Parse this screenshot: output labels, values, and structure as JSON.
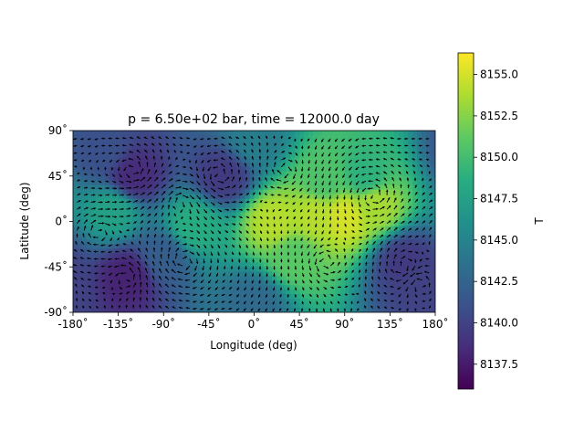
{
  "chart_data": {
    "type": "heatmap",
    "title": "p = 6.50e+02 bar, time = 12000.0 day",
    "xlabel": "Longitude (deg)",
    "ylabel": "Latitude (deg)",
    "xlim": [
      -180,
      180
    ],
    "ylim": [
      -90,
      90
    ],
    "x_ticks": [
      -180,
      -135,
      -90,
      -45,
      0,
      45,
      90,
      135,
      180
    ],
    "x_tick_labels": [
      "-180$^\\circ$",
      "-135$^\\circ$",
      "-90$^\\circ$",
      "-45$^\\circ$",
      "0$^\\circ$",
      "45$^\\circ$",
      "90$^\\circ$",
      "135$^\\circ$",
      "180$^\\circ$"
    ],
    "x_tick_text": [
      "-180˚",
      "-135˚",
      "-90˚",
      "-45˚",
      "0˚",
      "45˚",
      "90˚",
      "135˚",
      "180˚"
    ],
    "y_ticks": [
      90,
      45,
      0,
      -45,
      -90
    ],
    "y_tick_text": [
      "90˚",
      "45˚",
      "0˚",
      "-45˚",
      "-90˚"
    ],
    "colorbar": {
      "label": "T",
      "range": [
        8136.0,
        8156.3
      ],
      "ticks": [
        8137.5,
        8140.0,
        8142.5,
        8145.0,
        8147.5,
        8150.0,
        8152.5,
        8155.0
      ],
      "tick_text": [
        "8137.5",
        "8140.0",
        "8142.5",
        "8145.0",
        "8147.5",
        "8150.0",
        "8152.5",
        "8155.0"
      ],
      "colormap": "viridis"
    },
    "temperature_features": [
      {
        "lon": 90,
        "lat": 5,
        "T": 8155.0
      },
      {
        "lon": 60,
        "lat": 5,
        "T": 8154.0
      },
      {
        "lon": 20,
        "lat": 0,
        "T": 8154.0
      },
      {
        "lon": 120,
        "lat": 15,
        "T": 8153.5
      },
      {
        "lon": 70,
        "lat": 40,
        "T": 8150.5
      },
      {
        "lon": 110,
        "lat": 45,
        "T": 8149.0
      },
      {
        "lon": 40,
        "lat": -35,
        "T": 8151.0
      },
      {
        "lon": -60,
        "lat": -5,
        "T": 8148.5
      },
      {
        "lon": -140,
        "lat": 10,
        "T": 8147.5
      },
      {
        "lon": -120,
        "lat": 45,
        "T": 8138.5
      },
      {
        "lon": -30,
        "lat": 45,
        "T": 8139.5
      },
      {
        "lon": -150,
        "lat": 70,
        "T": 8141.0
      },
      {
        "lon": -125,
        "lat": -55,
        "T": 8138.0
      },
      {
        "lon": 150,
        "lat": -40,
        "T": 8139.5
      },
      {
        "lon": 165,
        "lat": -60,
        "T": 8140.0
      },
      {
        "lon": -90,
        "lat": -35,
        "T": 8142.0
      },
      {
        "lon": 0,
        "lat": -80,
        "T": 8143.0
      },
      {
        "lon": 0,
        "lat": 80,
        "T": 8144.5
      }
    ],
    "quiver": "wind velocity vectors (black arrows) overlaid on a regular lon/lat grid"
  }
}
